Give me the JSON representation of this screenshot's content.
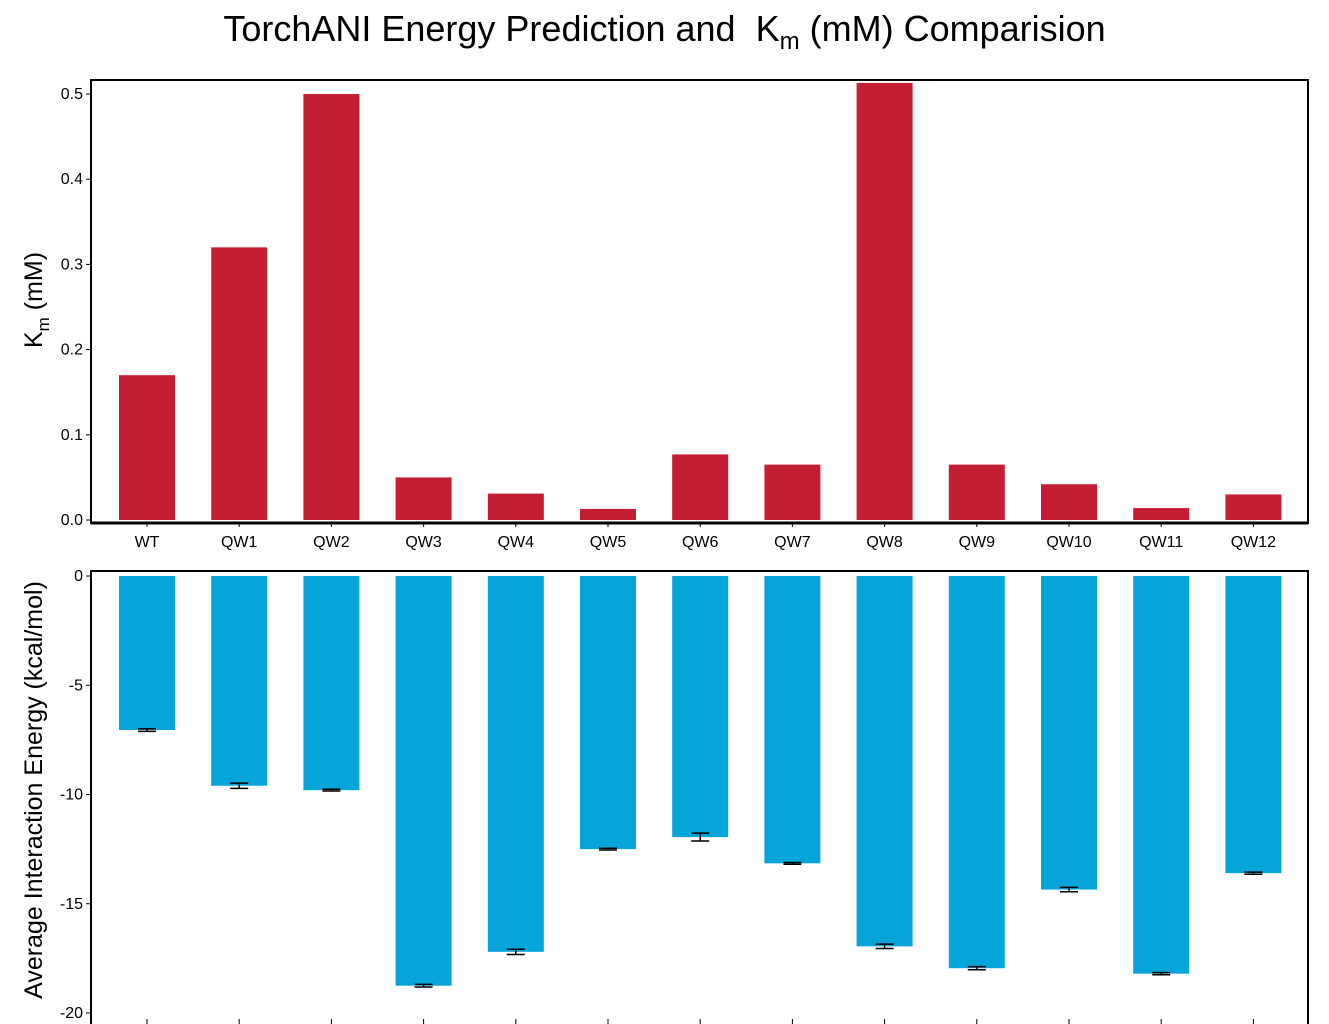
{
  "title": {
    "main": "TorchANI Energy Prediction and",
    "km_symbol": "K",
    "km_sub": "m",
    "rest": "(mM) Comparision"
  },
  "chart_data": [
    {
      "type": "bar",
      "categories": [
        "WT",
        "QW1",
        "QW2",
        "QW3",
        "QW4",
        "QW5",
        "QW6",
        "QW7",
        "QW8",
        "QW9",
        "QW10",
        "QW11",
        "QW12"
      ],
      "values": [
        0.17,
        0.32,
        0.5,
        0.05,
        0.031,
        0.013,
        0.077,
        0.065,
        0.513,
        0.065,
        0.042,
        0.014,
        0.03
      ],
      "ylabel": "K_m (mM)",
      "ylabel_symbol": "K",
      "ylabel_sub": "m",
      "ylabel_rest": " (mM)",
      "ylim": [
        0,
        0.52
      ],
      "yticks": [
        "0.0",
        "0.1",
        "0.2",
        "0.3",
        "0.4",
        "0.5"
      ],
      "color": "#C41E34",
      "grid": false
    },
    {
      "type": "bar",
      "categories": [
        "WT",
        "QW1",
        "QW2",
        "QW3",
        "QW4",
        "QW5",
        "QW6",
        "QW7",
        "QW8",
        "QW9",
        "QW10",
        "QW11",
        "QW12"
      ],
      "values": [
        -7.05,
        -9.6,
        -9.8,
        -18.75,
        -17.2,
        -12.5,
        -11.95,
        -13.15,
        -16.95,
        -17.95,
        -14.35,
        -18.2,
        -13.6
      ],
      "errors": [
        0.06,
        0.12,
        0.04,
        0.06,
        0.12,
        0.04,
        0.18,
        0.04,
        0.1,
        0.07,
        0.1,
        0.05,
        0.05
      ],
      "ylabel": "Average Interaction Energy (kcal/mol)",
      "ylim": [
        -20.2,
        0.2
      ],
      "yticks": [
        "0",
        "-5",
        "-10",
        "-15",
        "-20"
      ],
      "color": "#05A5DA",
      "grid": false
    }
  ]
}
